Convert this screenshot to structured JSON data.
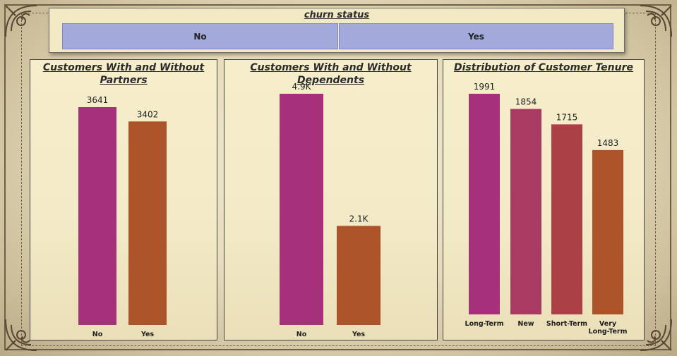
{
  "slicer": {
    "title": "churn status",
    "options": [
      "No",
      "Yes"
    ]
  },
  "colors": {
    "magenta": "#a6307a",
    "rose": "#a93a62",
    "brick": "#ab4147",
    "orange": "#ad532a",
    "slicer_button": "#a2a9db"
  },
  "chart_data": [
    {
      "type": "bar",
      "title": "Customers With and Without Partners",
      "categories": [
        "No",
        "Yes"
      ],
      "values": [
        3641,
        3402
      ],
      "labels": [
        "3641",
        "3402"
      ],
      "colors": [
        "#a6307a",
        "#ad532a"
      ],
      "ylim": [
        0,
        3641
      ]
    },
    {
      "type": "bar",
      "title": "Customers With and Without Dependents",
      "categories": [
        "No",
        "Yes"
      ],
      "values": [
        4900,
        2100
      ],
      "labels": [
        "4.9K",
        "2.1K"
      ],
      "colors": [
        "#a6307a",
        "#ad532a"
      ],
      "ylim": [
        0,
        4900
      ]
    },
    {
      "type": "bar",
      "title": "Distribution of Customer Tenure",
      "categories": [
        "Long-Term",
        "New",
        "Short-Term",
        "Very Long-Term"
      ],
      "values": [
        1991,
        1854,
        1715,
        1483
      ],
      "labels": [
        "1991",
        "1854",
        "1715",
        "1483"
      ],
      "colors": [
        "#a6307a",
        "#a93a62",
        "#ab4147",
        "#ad532a"
      ],
      "ylim": [
        0,
        1991
      ]
    }
  ]
}
